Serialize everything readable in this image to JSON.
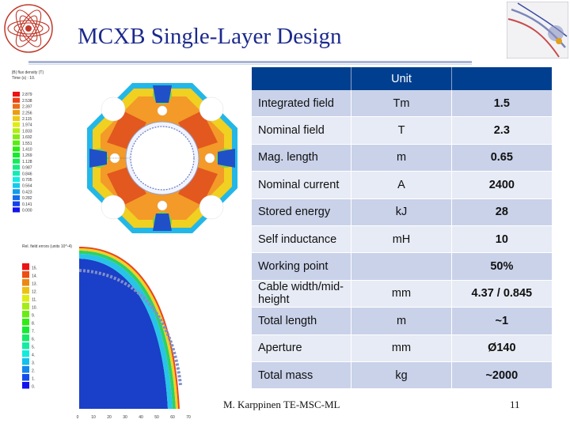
{
  "slide": {
    "title": "MCXB Single-Layer Design",
    "footer": "M. Karppinen TE-MSC-ML",
    "page_number": "11"
  },
  "table": {
    "header": {
      "name": "",
      "unit": "Unit",
      "value": ""
    },
    "rows": [
      {
        "name": "Integrated field",
        "unit": "Tm",
        "value": "1.5"
      },
      {
        "name": "Nominal field",
        "unit": "T",
        "value": "2.3"
      },
      {
        "name": "Mag. length",
        "unit": "m",
        "value": "0.65"
      },
      {
        "name": "Nominal current",
        "unit": "A",
        "value": "2400"
      },
      {
        "name": "Stored energy",
        "unit": "kJ",
        "value": "28"
      },
      {
        "name": "Self inductance",
        "unit": "mH",
        "value": "10"
      },
      {
        "name": "Working point",
        "unit": "",
        "value": "50%"
      },
      {
        "name": "Cable width/mid-height",
        "unit": "mm",
        "value": "4.37 / 0.845"
      },
      {
        "name": "Total length",
        "unit": "m",
        "value": "~1"
      },
      {
        "name": "Aperture",
        "unit": "mm",
        "value": "Ø140"
      },
      {
        "name": "Total mass",
        "unit": "kg",
        "value": "~2000"
      }
    ]
  },
  "field_plot": {
    "title_line1": "|B| flux density (T)",
    "title_line2": "Time (s) :    10.",
    "legend": [
      "2.879",
      "2.538",
      "2.397",
      "2.256",
      "2.115",
      "1.974",
      "1.833",
      "1.692",
      "1.551",
      "1.410",
      "1.269",
      "1.128",
      "0.987",
      "0.846",
      "0.705",
      "0.564",
      "0.423",
      "0.282",
      "0.141",
      "0.000"
    ]
  },
  "error_plot": {
    "title": "Rel. field errors (units 10^-4)",
    "legend": [
      "15.",
      "14.",
      "13.",
      "12.",
      "11.",
      "10.",
      "9.",
      "8.",
      "7.",
      "6.",
      "5.",
      "4.",
      "3.",
      "2.",
      "1.",
      "0."
    ],
    "x_ticks": [
      "0",
      "10",
      "20",
      "30",
      "40",
      "50",
      "60",
      "70"
    ]
  },
  "colors": {
    "title": "#1c2a8c",
    "table_header": "#003f8f",
    "row_odd": "#c9d2e9",
    "row_even": "#e7ebf5"
  }
}
